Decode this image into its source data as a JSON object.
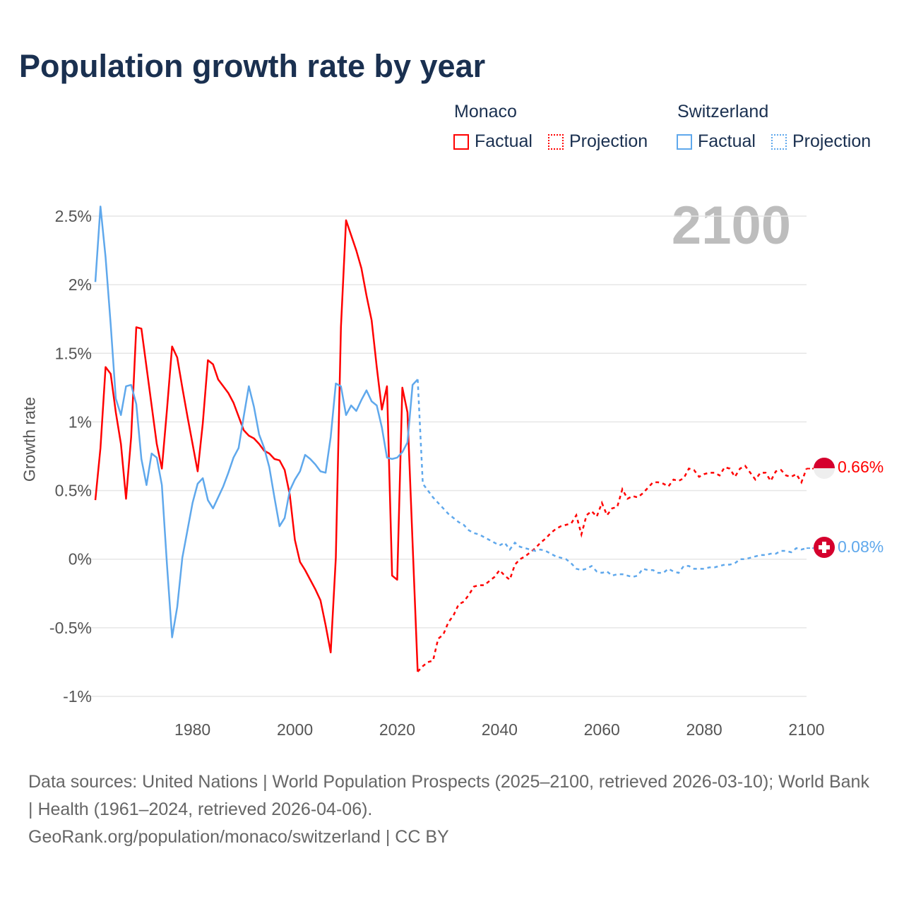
{
  "title": "Population growth rate by year",
  "legend": {
    "groups": [
      {
        "name": "Monaco",
        "factual": "Factual",
        "projection": "Projection",
        "color": "#ff0000"
      },
      {
        "name": "Switzerland",
        "factual": "Factual",
        "projection": "Projection",
        "color": "#5fa8ec"
      }
    ]
  },
  "year_display": "2100",
  "end_labels": {
    "monaco": "0.66%",
    "switzerland": "0.08%"
  },
  "footer": {
    "sources": "Data sources: United Nations | World Population Prospects (2025–2100, retrieved 2026-03-10); World Bank | Health (1961–2024, retrieved 2026-04-06).",
    "credit": "GeoRank.org/population/monaco/switzerland | CC BY"
  },
  "chart_data": {
    "type": "line",
    "title": "Population growth rate by year",
    "xlabel": "",
    "ylabel": "Growth rate",
    "xlim": [
      1961,
      2100
    ],
    "ylim": [
      -1,
      2.5
    ],
    "x_ticks": [
      1980,
      2000,
      2020,
      2040,
      2060,
      2080,
      2100
    ],
    "y_ticks": [
      {
        "v": 2.5,
        "label": "2.5%"
      },
      {
        "v": 2,
        "label": "2%"
      },
      {
        "v": 1.5,
        "label": "1.5%"
      },
      {
        "v": 1,
        "label": "1%"
      },
      {
        "v": 0.5,
        "label": "0.5%"
      },
      {
        "v": 0,
        "label": "0%"
      },
      {
        "v": -0.5,
        "label": "-0.5%"
      },
      {
        "v": -1,
        "label": "-1%"
      }
    ],
    "grid": true,
    "legend_position": "top-right",
    "series": [
      {
        "name": "Monaco",
        "color": "#ff0000",
        "factual_start": 1961,
        "factual": [
          0.43,
          0.81,
          1.4,
          1.35,
          1.07,
          0.84,
          0.44,
          0.89,
          1.69,
          1.68,
          1.4,
          1.12,
          0.84,
          0.66,
          1.09,
          1.55,
          1.47,
          1.25,
          1.04,
          0.84,
          0.64,
          0.99,
          1.45,
          1.42,
          1.31,
          1.26,
          1.21,
          1.14,
          1.04,
          0.94,
          0.9,
          0.88,
          0.84,
          0.79,
          0.77,
          0.73,
          0.72,
          0.65,
          0.47,
          0.14,
          -0.02,
          -0.08,
          -0.15,
          -0.22,
          -0.3,
          -0.48,
          -0.68,
          0.01,
          1.69,
          2.47,
          2.36,
          2.25,
          2.12,
          1.92,
          1.74,
          1.4,
          1.09,
          1.26,
          -0.12,
          -0.15,
          1.25,
          1.07,
          0.12,
          -0.82
        ],
        "projection_start": 2025,
        "projection": [
          -0.78,
          -0.75,
          -0.74,
          -0.58,
          -0.55,
          -0.46,
          -0.41,
          -0.33,
          -0.31,
          -0.26,
          -0.2,
          -0.19,
          -0.19,
          -0.16,
          -0.13,
          -0.08,
          -0.12,
          -0.15,
          -0.04,
          0.0,
          0.02,
          0.05,
          0.08,
          0.12,
          0.15,
          0.19,
          0.22,
          0.24,
          0.25,
          0.26,
          0.32,
          0.18,
          0.32,
          0.35,
          0.31,
          0.41,
          0.32,
          0.37,
          0.38,
          0.51,
          0.44,
          0.46,
          0.45,
          0.48,
          0.52,
          0.56,
          0.56,
          0.55,
          0.53,
          0.58,
          0.57,
          0.59,
          0.66,
          0.65,
          0.6,
          0.62,
          0.63,
          0.63,
          0.61,
          0.67,
          0.66,
          0.6,
          0.66,
          0.68,
          0.63,
          0.58,
          0.63,
          0.63,
          0.57,
          0.64,
          0.65,
          0.61,
          0.6,
          0.62,
          0.56,
          0.66
        ]
      },
      {
        "name": "Switzerland",
        "color": "#5fa8ec",
        "factual_start": 1961,
        "factual": [
          2.02,
          2.57,
          2.2,
          1.71,
          1.17,
          1.05,
          1.26,
          1.27,
          1.13,
          0.73,
          0.54,
          0.77,
          0.74,
          0.54,
          -0.04,
          -0.57,
          -0.35,
          0.01,
          0.21,
          0.41,
          0.55,
          0.59,
          0.43,
          0.37,
          0.45,
          0.53,
          0.63,
          0.74,
          0.81,
          1.04,
          1.26,
          1.11,
          0.91,
          0.81,
          0.67,
          0.45,
          0.24,
          0.3,
          0.5,
          0.58,
          0.64,
          0.76,
          0.73,
          0.69,
          0.64,
          0.63,
          0.89,
          1.28,
          1.26,
          1.05,
          1.12,
          1.08,
          1.16,
          1.23,
          1.15,
          1.12,
          0.96,
          0.74,
          0.73,
          0.74,
          0.78,
          0.85,
          1.27,
          1.31
        ],
        "projection_start": 2025,
        "projection": [
          0.55,
          0.5,
          0.45,
          0.41,
          0.37,
          0.33,
          0.3,
          0.27,
          0.25,
          0.21,
          0.19,
          0.18,
          0.16,
          0.14,
          0.12,
          0.1,
          0.12,
          0.07,
          0.12,
          0.09,
          0.08,
          0.07,
          0.06,
          0.07,
          0.06,
          0.04,
          0.02,
          0.01,
          0.0,
          -0.03,
          -0.07,
          -0.08,
          -0.07,
          -0.05,
          -0.09,
          -0.1,
          -0.09,
          -0.12,
          -0.11,
          -0.11,
          -0.12,
          -0.13,
          -0.12,
          -0.07,
          -0.08,
          -0.08,
          -0.1,
          -0.1,
          -0.07,
          -0.09,
          -0.1,
          -0.05,
          -0.05,
          -0.07,
          -0.07,
          -0.07,
          -0.06,
          -0.06,
          -0.05,
          -0.04,
          -0.04,
          -0.03,
          0.0,
          0.0,
          0.01,
          0.02,
          0.03,
          0.03,
          0.04,
          0.04,
          0.06,
          0.06,
          0.05,
          0.08,
          0.07,
          0.08
        ]
      }
    ]
  }
}
